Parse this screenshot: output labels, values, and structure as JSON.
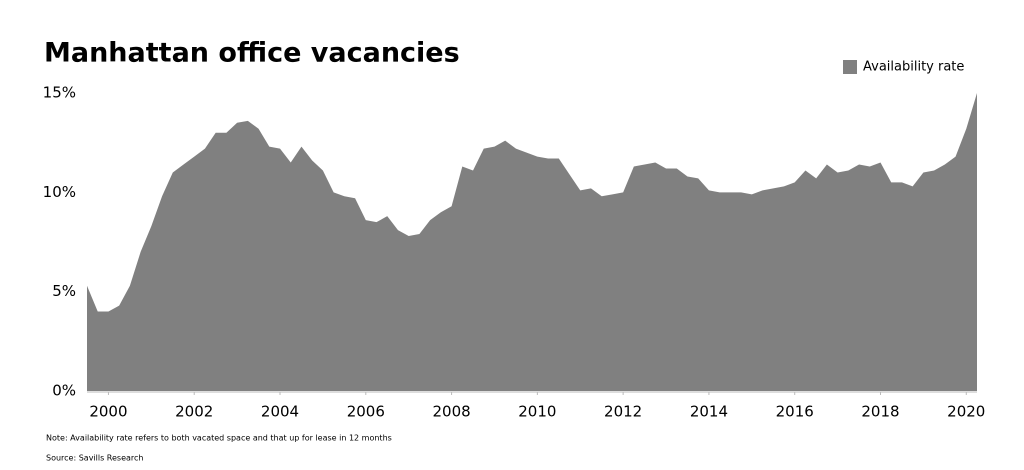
{
  "chart_data": {
    "type": "area",
    "title": "Manhattan office vacancies",
    "note": "Note: Availability rate refers to both vacated space and that up for lease in 12 months",
    "source": "Source: Savills Research",
    "legend_position": "top-right",
    "x": [
      1999.5,
      1999.75,
      2000,
      2000.25,
      2000.5,
      2000.75,
      2001,
      2001.25,
      2001.5,
      2001.75,
      2002,
      2002.25,
      2002.5,
      2002.75,
      2003,
      2003.25,
      2003.5,
      2003.75,
      2004,
      2004.25,
      2004.5,
      2004.75,
      2005,
      2005.25,
      2005.5,
      2005.75,
      2006,
      2006.25,
      2006.5,
      2006.75,
      2007,
      2007.25,
      2007.5,
      2007.75,
      2008,
      2008.25,
      2008.5,
      2008.75,
      2009,
      2009.25,
      2009.5,
      2009.75,
      2010,
      2010.25,
      2010.5,
      2010.75,
      2011,
      2011.25,
      2011.5,
      2011.75,
      2012,
      2012.25,
      2012.5,
      2012.75,
      2013,
      2013.25,
      2013.5,
      2013.75,
      2014,
      2014.25,
      2014.5,
      2014.75,
      2015,
      2015.25,
      2015.5,
      2015.75,
      2016,
      2016.25,
      2016.5,
      2016.75,
      2017,
      2017.25,
      2017.5,
      2017.75,
      2018,
      2018.25,
      2018.5,
      2018.75,
      2019,
      2019.25,
      2019.5,
      2019.75,
      2020,
      2020.25
    ],
    "series": [
      {
        "name": "Availability rate",
        "color": "#808080",
        "values": [
          5.3,
          4.0,
          4.0,
          4.3,
          5.3,
          7.0,
          8.3,
          9.8,
          11.0,
          11.4,
          11.8,
          12.2,
          13.0,
          13.0,
          13.5,
          13.6,
          13.2,
          12.3,
          12.2,
          11.5,
          12.3,
          11.6,
          11.1,
          10.0,
          9.8,
          9.7,
          8.6,
          8.5,
          8.8,
          8.1,
          7.8,
          7.9,
          8.6,
          9.0,
          9.3,
          11.3,
          11.1,
          12.2,
          12.3,
          12.6,
          12.2,
          12.0,
          11.8,
          11.7,
          11.7,
          10.9,
          10.1,
          10.2,
          9.8,
          9.9,
          10.0,
          11.3,
          11.4,
          11.5,
          11.2,
          11.2,
          10.8,
          10.7,
          10.1,
          10.0,
          10.0,
          10.0,
          9.9,
          10.1,
          10.2,
          10.3,
          10.5,
          11.1,
          10.7,
          11.4,
          11.0,
          11.1,
          11.4,
          11.3,
          11.5,
          10.5,
          10.5,
          10.3,
          11.0,
          11.1,
          11.4,
          11.8,
          13.2,
          15.0
        ]
      }
    ],
    "xlim": [
      1999.5,
      2020.25
    ],
    "xticks": [
      2000,
      2002,
      2004,
      2006,
      2008,
      2010,
      2012,
      2014,
      2016,
      2018,
      2020
    ],
    "ylim": [
      0,
      15
    ],
    "yticks": [
      {
        "value": 0,
        "label": "0%"
      },
      {
        "value": 5,
        "label": "5%"
      },
      {
        "value": 10,
        "label": "10%"
      },
      {
        "value": 15,
        "label": "15%"
      }
    ]
  }
}
